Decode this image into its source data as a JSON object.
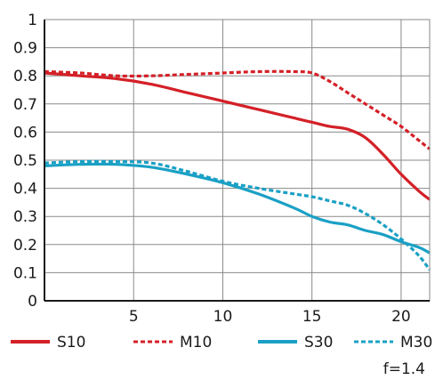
{
  "chart_data": {
    "type": "line",
    "title": "",
    "xlabel": "",
    "ylabel": "",
    "xlim": [
      0,
      21.6
    ],
    "ylim": [
      0,
      1
    ],
    "xticks": [
      5,
      10,
      15,
      20
    ],
    "yticks": [
      0,
      0.1,
      0.2,
      0.3,
      0.4,
      0.5,
      0.6,
      0.7,
      0.8,
      0.9,
      1
    ],
    "grid": true,
    "legend_position": "bottom",
    "annotation": "f=1.4",
    "series": [
      {
        "name": "S10",
        "color": "#d42027",
        "style": "solid",
        "x": [
          0,
          2,
          4,
          6,
          8,
          10,
          12,
          14,
          15,
          16,
          17,
          18,
          19,
          20,
          21,
          21.6
        ],
        "y": [
          0.81,
          0.8,
          0.79,
          0.77,
          0.74,
          0.71,
          0.68,
          0.65,
          0.635,
          0.62,
          0.61,
          0.58,
          0.52,
          0.45,
          0.39,
          0.36
        ]
      },
      {
        "name": "M10",
        "color": "#d42027",
        "style": "dashed",
        "x": [
          0,
          2,
          4,
          6,
          8,
          10,
          12,
          14,
          15,
          16,
          17,
          18,
          19,
          20,
          21,
          21.6
        ],
        "y": [
          0.815,
          0.81,
          0.8,
          0.8,
          0.805,
          0.81,
          0.815,
          0.815,
          0.81,
          0.78,
          0.74,
          0.7,
          0.66,
          0.62,
          0.57,
          0.54
        ]
      },
      {
        "name": "S30",
        "color": "#1aa0c5",
        "style": "solid",
        "x": [
          0,
          2,
          4,
          6,
          8,
          10,
          12,
          14,
          15,
          16,
          17,
          18,
          19,
          20,
          21,
          21.6
        ],
        "y": [
          0.48,
          0.485,
          0.485,
          0.475,
          0.45,
          0.42,
          0.38,
          0.33,
          0.3,
          0.28,
          0.27,
          0.25,
          0.235,
          0.21,
          0.19,
          0.17
        ]
      },
      {
        "name": "M30",
        "color": "#1aa0c5",
        "style": "dashed",
        "x": [
          0,
          2,
          4,
          6,
          8,
          10,
          12,
          14,
          15,
          16,
          17,
          18,
          19,
          20,
          21,
          21.6
        ],
        "y": [
          0.49,
          0.495,
          0.495,
          0.49,
          0.46,
          0.425,
          0.4,
          0.38,
          0.37,
          0.355,
          0.34,
          0.31,
          0.27,
          0.22,
          0.16,
          0.11
        ]
      }
    ]
  }
}
